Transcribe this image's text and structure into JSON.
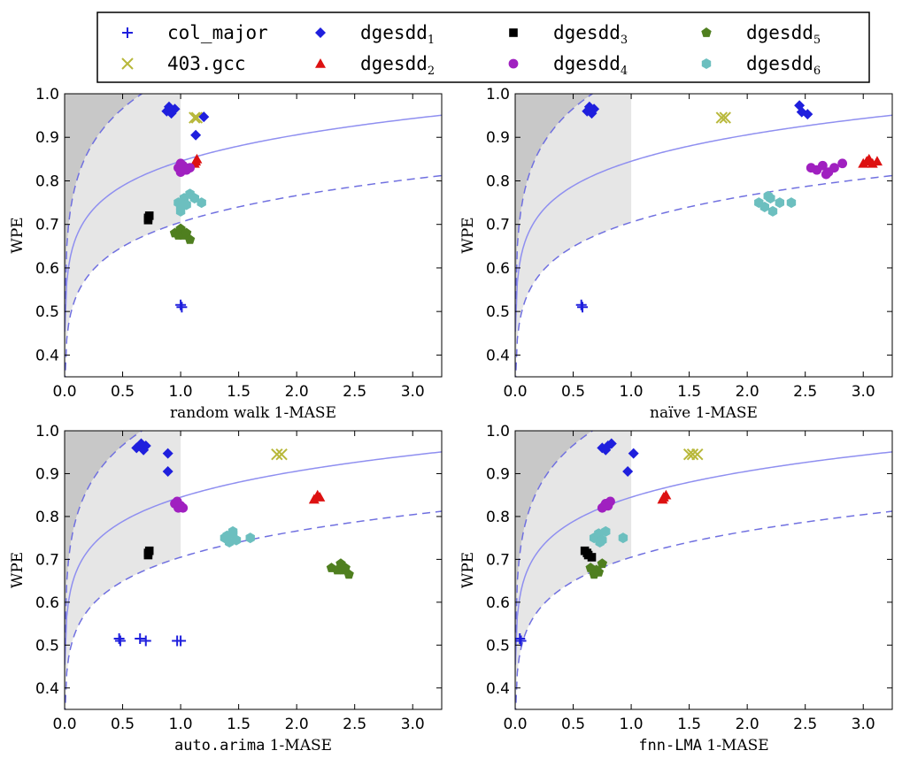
{
  "legend": {
    "items": [
      {
        "key": "col_major",
        "label": "col_major",
        "sub": "",
        "marker": "plus",
        "color": "#1f1fdd"
      },
      {
        "key": "dgesdd1",
        "label": "dgesdd",
        "sub": "1",
        "marker": "diamond",
        "color": "#1f1fdd"
      },
      {
        "key": "dgesdd3",
        "label": "dgesdd",
        "sub": "3",
        "marker": "square",
        "color": "#000000"
      },
      {
        "key": "dgesdd5",
        "label": "dgesdd",
        "sub": "5",
        "marker": "pentagon",
        "color": "#4f7f1f"
      },
      {
        "key": "gcc403",
        "label": "403.gcc",
        "sub": "",
        "marker": "x",
        "color": "#b8b83a"
      },
      {
        "key": "dgesdd2",
        "label": "dgesdd",
        "sub": "2",
        "marker": "triangle",
        "color": "#dd1111"
      },
      {
        "key": "dgesdd4",
        "label": "dgesdd",
        "sub": "4",
        "marker": "circle",
        "color": "#a020c0"
      },
      {
        "key": "dgesdd6",
        "label": "dgesdd",
        "sub": "6",
        "marker": "hexagon",
        "color": "#6cbfbf"
      }
    ]
  },
  "colors": {
    "curve": "#8f8ff0",
    "dashed": "#7070e0",
    "region_dark": "#c8c8c8",
    "region_light": "#e6e6e6"
  },
  "chart_data": [
    {
      "type": "scatter",
      "xlabel": "random walk 1-MASE",
      "xlabel_code": "",
      "xlabel_rest": "random walk 1-MASE",
      "ylabel": "WPE",
      "xlim": [
        0,
        3.25
      ],
      "ylim": [
        0.35,
        1.0
      ],
      "xticks": [
        0.0,
        0.5,
        1.0,
        1.5,
        2.0,
        2.5,
        3.0
      ],
      "yticks": [
        0.4,
        0.5,
        0.6,
        0.7,
        0.8,
        0.9,
        1.0
      ],
      "xtick_labels": [
        "0.0",
        "0.5",
        "1.0",
        "1.5",
        "2.0",
        "2.5",
        "3.0"
      ],
      "ytick_labels": [
        "0.4",
        "0.5",
        "0.6",
        "0.7",
        "0.8",
        "0.9",
        "1.0"
      ],
      "shaded_xmax": 1.0,
      "series": [
        {
          "name": "col_major",
          "points": [
            [
              1.0,
              0.515
            ],
            [
              1.01,
              0.51
            ]
          ]
        },
        {
          "name": "403.gcc",
          "points": [
            [
              1.12,
              0.945
            ],
            [
              1.14,
              0.945
            ]
          ]
        },
        {
          "name": "dgesdd1",
          "points": [
            [
              0.88,
              0.96
            ],
            [
              0.92,
              0.955
            ],
            [
              0.95,
              0.965
            ],
            [
              0.9,
              0.97
            ],
            [
              1.13,
              0.905
            ],
            [
              1.2,
              0.947
            ]
          ]
        },
        {
          "name": "dgesdd2",
          "points": [
            [
              1.12,
              0.84
            ],
            [
              1.14,
              0.85
            ],
            [
              1.13,
              0.845
            ]
          ]
        },
        {
          "name": "dgesdd3",
          "points": [
            [
              0.72,
              0.71
            ],
            [
              0.73,
              0.72
            ],
            [
              0.72,
              0.715
            ]
          ]
        },
        {
          "name": "dgesdd4",
          "points": [
            [
              0.98,
              0.83
            ],
            [
              1.0,
              0.82
            ],
            [
              1.02,
              0.835
            ],
            [
              1.05,
              0.825
            ],
            [
              1.08,
              0.83
            ],
            [
              1.0,
              0.84
            ]
          ]
        },
        {
          "name": "dgesdd5",
          "points": [
            [
              0.95,
              0.68
            ],
            [
              0.98,
              0.675
            ],
            [
              1.0,
              0.69
            ],
            [
              1.02,
              0.675
            ],
            [
              1.05,
              0.68
            ],
            [
              1.08,
              0.665
            ]
          ]
        },
        {
          "name": "dgesdd6",
          "points": [
            [
              0.98,
              0.75
            ],
            [
              1.0,
              0.74
            ],
            [
              1.03,
              0.76
            ],
            [
              1.05,
              0.745
            ],
            [
              1.08,
              0.77
            ],
            [
              1.12,
              0.76
            ],
            [
              1.0,
              0.73
            ],
            [
              1.18,
              0.75
            ]
          ]
        }
      ]
    },
    {
      "type": "scatter",
      "xlabel": "naïve 1-MASE",
      "xlabel_code": "",
      "xlabel_rest": "naïve 1-MASE",
      "ylabel": "WPE",
      "xlim": [
        0,
        3.25
      ],
      "ylim": [
        0.35,
        1.0
      ],
      "xticks": [
        0.0,
        0.5,
        1.0,
        1.5,
        2.0,
        2.5,
        3.0
      ],
      "yticks": [
        0.4,
        0.5,
        0.6,
        0.7,
        0.8,
        0.9,
        1.0
      ],
      "xtick_labels": [
        "0.0",
        "0.5",
        "1.0",
        "1.5",
        "2.0",
        "2.5",
        "3.0"
      ],
      "ytick_labels": [
        "0.4",
        "0.5",
        "0.6",
        "0.7",
        "0.8",
        "0.9",
        "1.0"
      ],
      "shaded_xmax": 1.0,
      "series": [
        {
          "name": "col_major",
          "points": [
            [
              0.57,
              0.515
            ],
            [
              0.58,
              0.51
            ]
          ]
        },
        {
          "name": "403.gcc",
          "points": [
            [
              1.78,
              0.945
            ],
            [
              1.81,
              0.945
            ]
          ]
        },
        {
          "name": "dgesdd1",
          "points": [
            [
              0.62,
              0.96
            ],
            [
              0.66,
              0.955
            ],
            [
              0.68,
              0.965
            ],
            [
              0.64,
              0.97
            ],
            [
              2.45,
              0.973
            ],
            [
              2.47,
              0.958
            ],
            [
              2.52,
              0.953
            ]
          ]
        },
        {
          "name": "dgesdd2",
          "points": [
            [
              3.0,
              0.84
            ],
            [
              3.05,
              0.85
            ],
            [
              3.08,
              0.84
            ],
            [
              3.12,
              0.845
            ],
            [
              3.03,
              0.845
            ]
          ]
        },
        {
          "name": "dgesdd3",
          "points": []
        },
        {
          "name": "dgesdd4",
          "points": [
            [
              2.55,
              0.83
            ],
            [
              2.6,
              0.825
            ],
            [
              2.65,
              0.835
            ],
            [
              2.7,
              0.82
            ],
            [
              2.75,
              0.83
            ],
            [
              2.82,
              0.84
            ],
            [
              2.68,
              0.815
            ]
          ]
        },
        {
          "name": "dgesdd5",
          "points": []
        },
        {
          "name": "dgesdd6",
          "points": [
            [
              2.1,
              0.75
            ],
            [
              2.15,
              0.74
            ],
            [
              2.18,
              0.765
            ],
            [
              2.22,
              0.73
            ],
            [
              2.28,
              0.75
            ],
            [
              2.38,
              0.75
            ],
            [
              2.2,
              0.76
            ]
          ]
        }
      ]
    },
    {
      "type": "scatter",
      "xlabel": "auto.arima 1-MASE",
      "xlabel_code": "auto.arima",
      "xlabel_rest": " 1-MASE",
      "ylabel": "WPE",
      "xlim": [
        0,
        3.25
      ],
      "ylim": [
        0.35,
        1.0
      ],
      "xticks": [
        0.0,
        0.5,
        1.0,
        1.5,
        2.0,
        2.5,
        3.0
      ],
      "yticks": [
        0.4,
        0.5,
        0.6,
        0.7,
        0.8,
        0.9,
        1.0
      ],
      "xtick_labels": [
        "0.0",
        "0.5",
        "1.0",
        "1.5",
        "2.0",
        "2.5",
        "3.0"
      ],
      "ytick_labels": [
        "0.4",
        "0.5",
        "0.6",
        "0.7",
        "0.8",
        "0.9",
        "1.0"
      ],
      "shaded_xmax": 1.0,
      "series": [
        {
          "name": "col_major",
          "points": [
            [
              0.47,
              0.515
            ],
            [
              0.48,
              0.51
            ],
            [
              0.65,
              0.515
            ],
            [
              0.7,
              0.51
            ],
            [
              0.97,
              0.51
            ],
            [
              1.0,
              0.51
            ]
          ]
        },
        {
          "name": "403.gcc",
          "points": [
            [
              1.83,
              0.945
            ],
            [
              1.87,
              0.945
            ]
          ]
        },
        {
          "name": "dgesdd1",
          "points": [
            [
              0.62,
              0.96
            ],
            [
              0.68,
              0.955
            ],
            [
              0.7,
              0.965
            ],
            [
              0.66,
              0.97
            ],
            [
              0.89,
              0.947
            ],
            [
              0.89,
              0.905
            ]
          ]
        },
        {
          "name": "dgesdd2",
          "points": [
            [
              2.15,
              0.84
            ],
            [
              2.18,
              0.85
            ],
            [
              2.2,
              0.845
            ]
          ]
        },
        {
          "name": "dgesdd3",
          "points": [
            [
              0.72,
              0.71
            ],
            [
              0.73,
              0.72
            ],
            [
              0.72,
              0.715
            ]
          ]
        },
        {
          "name": "dgesdd4",
          "points": [
            [
              0.95,
              0.83
            ],
            [
              0.98,
              0.82
            ],
            [
              1.0,
              0.825
            ],
            [
              1.02,
              0.82
            ],
            [
              0.97,
              0.835
            ]
          ]
        },
        {
          "name": "dgesdd5",
          "points": [
            [
              2.3,
              0.68
            ],
            [
              2.35,
              0.675
            ],
            [
              2.38,
              0.69
            ],
            [
              2.4,
              0.675
            ],
            [
              2.45,
              0.665
            ],
            [
              2.42,
              0.68
            ]
          ]
        },
        {
          "name": "dgesdd6",
          "points": [
            [
              1.38,
              0.75
            ],
            [
              1.42,
              0.74
            ],
            [
              1.45,
              0.76
            ],
            [
              1.48,
              0.745
            ],
            [
              1.45,
              0.765
            ],
            [
              1.6,
              0.75
            ],
            [
              1.4,
              0.755
            ]
          ]
        }
      ]
    },
    {
      "type": "scatter",
      "xlabel": "fnn-LMA 1-MASE",
      "xlabel_code": "fnn-LMA",
      "xlabel_rest": " 1-MASE",
      "ylabel": "WPE",
      "xlim": [
        0,
        3.25
      ],
      "ylim": [
        0.35,
        1.0
      ],
      "xticks": [
        0.0,
        0.5,
        1.0,
        1.5,
        2.0,
        2.5,
        3.0
      ],
      "yticks": [
        0.4,
        0.5,
        0.6,
        0.7,
        0.8,
        0.9,
        1.0
      ],
      "xtick_labels": [
        "0.0",
        "0.5",
        "1.0",
        "1.5",
        "2.0",
        "2.5",
        "3.0"
      ],
      "ytick_labels": [
        "0.4",
        "0.5",
        "0.6",
        "0.7",
        "0.8",
        "0.9",
        "1.0"
      ],
      "shaded_xmax": 1.0,
      "series": [
        {
          "name": "col_major",
          "points": [
            [
              0.04,
              0.515
            ],
            [
              0.05,
              0.51
            ]
          ]
        },
        {
          "name": "403.gcc",
          "points": [
            [
              1.5,
              0.945
            ],
            [
              1.53,
              0.945
            ],
            [
              1.57,
              0.945
            ]
          ]
        },
        {
          "name": "dgesdd1",
          "points": [
            [
              0.75,
              0.96
            ],
            [
              0.8,
              0.965
            ],
            [
              0.83,
              0.97
            ],
            [
              0.78,
              0.955
            ],
            [
              0.97,
              0.905
            ],
            [
              1.02,
              0.947
            ]
          ]
        },
        {
          "name": "dgesdd2",
          "points": [
            [
              1.27,
              0.84
            ],
            [
              1.3,
              0.85
            ],
            [
              1.28,
              0.845
            ]
          ]
        },
        {
          "name": "dgesdd3",
          "points": [
            [
              0.6,
              0.72
            ],
            [
              0.63,
              0.71
            ],
            [
              0.66,
              0.705
            ],
            [
              0.62,
              0.715
            ]
          ]
        },
        {
          "name": "dgesdd4",
          "points": [
            [
              0.75,
              0.82
            ],
            [
              0.78,
              0.83
            ],
            [
              0.8,
              0.825
            ],
            [
              0.82,
              0.835
            ],
            [
              0.77,
              0.825
            ]
          ]
        },
        {
          "name": "dgesdd5",
          "points": [
            [
              0.65,
              0.68
            ],
            [
              0.7,
              0.675
            ],
            [
              0.72,
              0.67
            ],
            [
              0.75,
              0.69
            ],
            [
              0.68,
              0.665
            ]
          ]
        },
        {
          "name": "dgesdd6",
          "points": [
            [
              0.68,
              0.75
            ],
            [
              0.72,
              0.76
            ],
            [
              0.75,
              0.745
            ],
            [
              0.78,
              0.765
            ],
            [
              0.73,
              0.74
            ],
            [
              0.93,
              0.75
            ]
          ]
        }
      ]
    }
  ]
}
